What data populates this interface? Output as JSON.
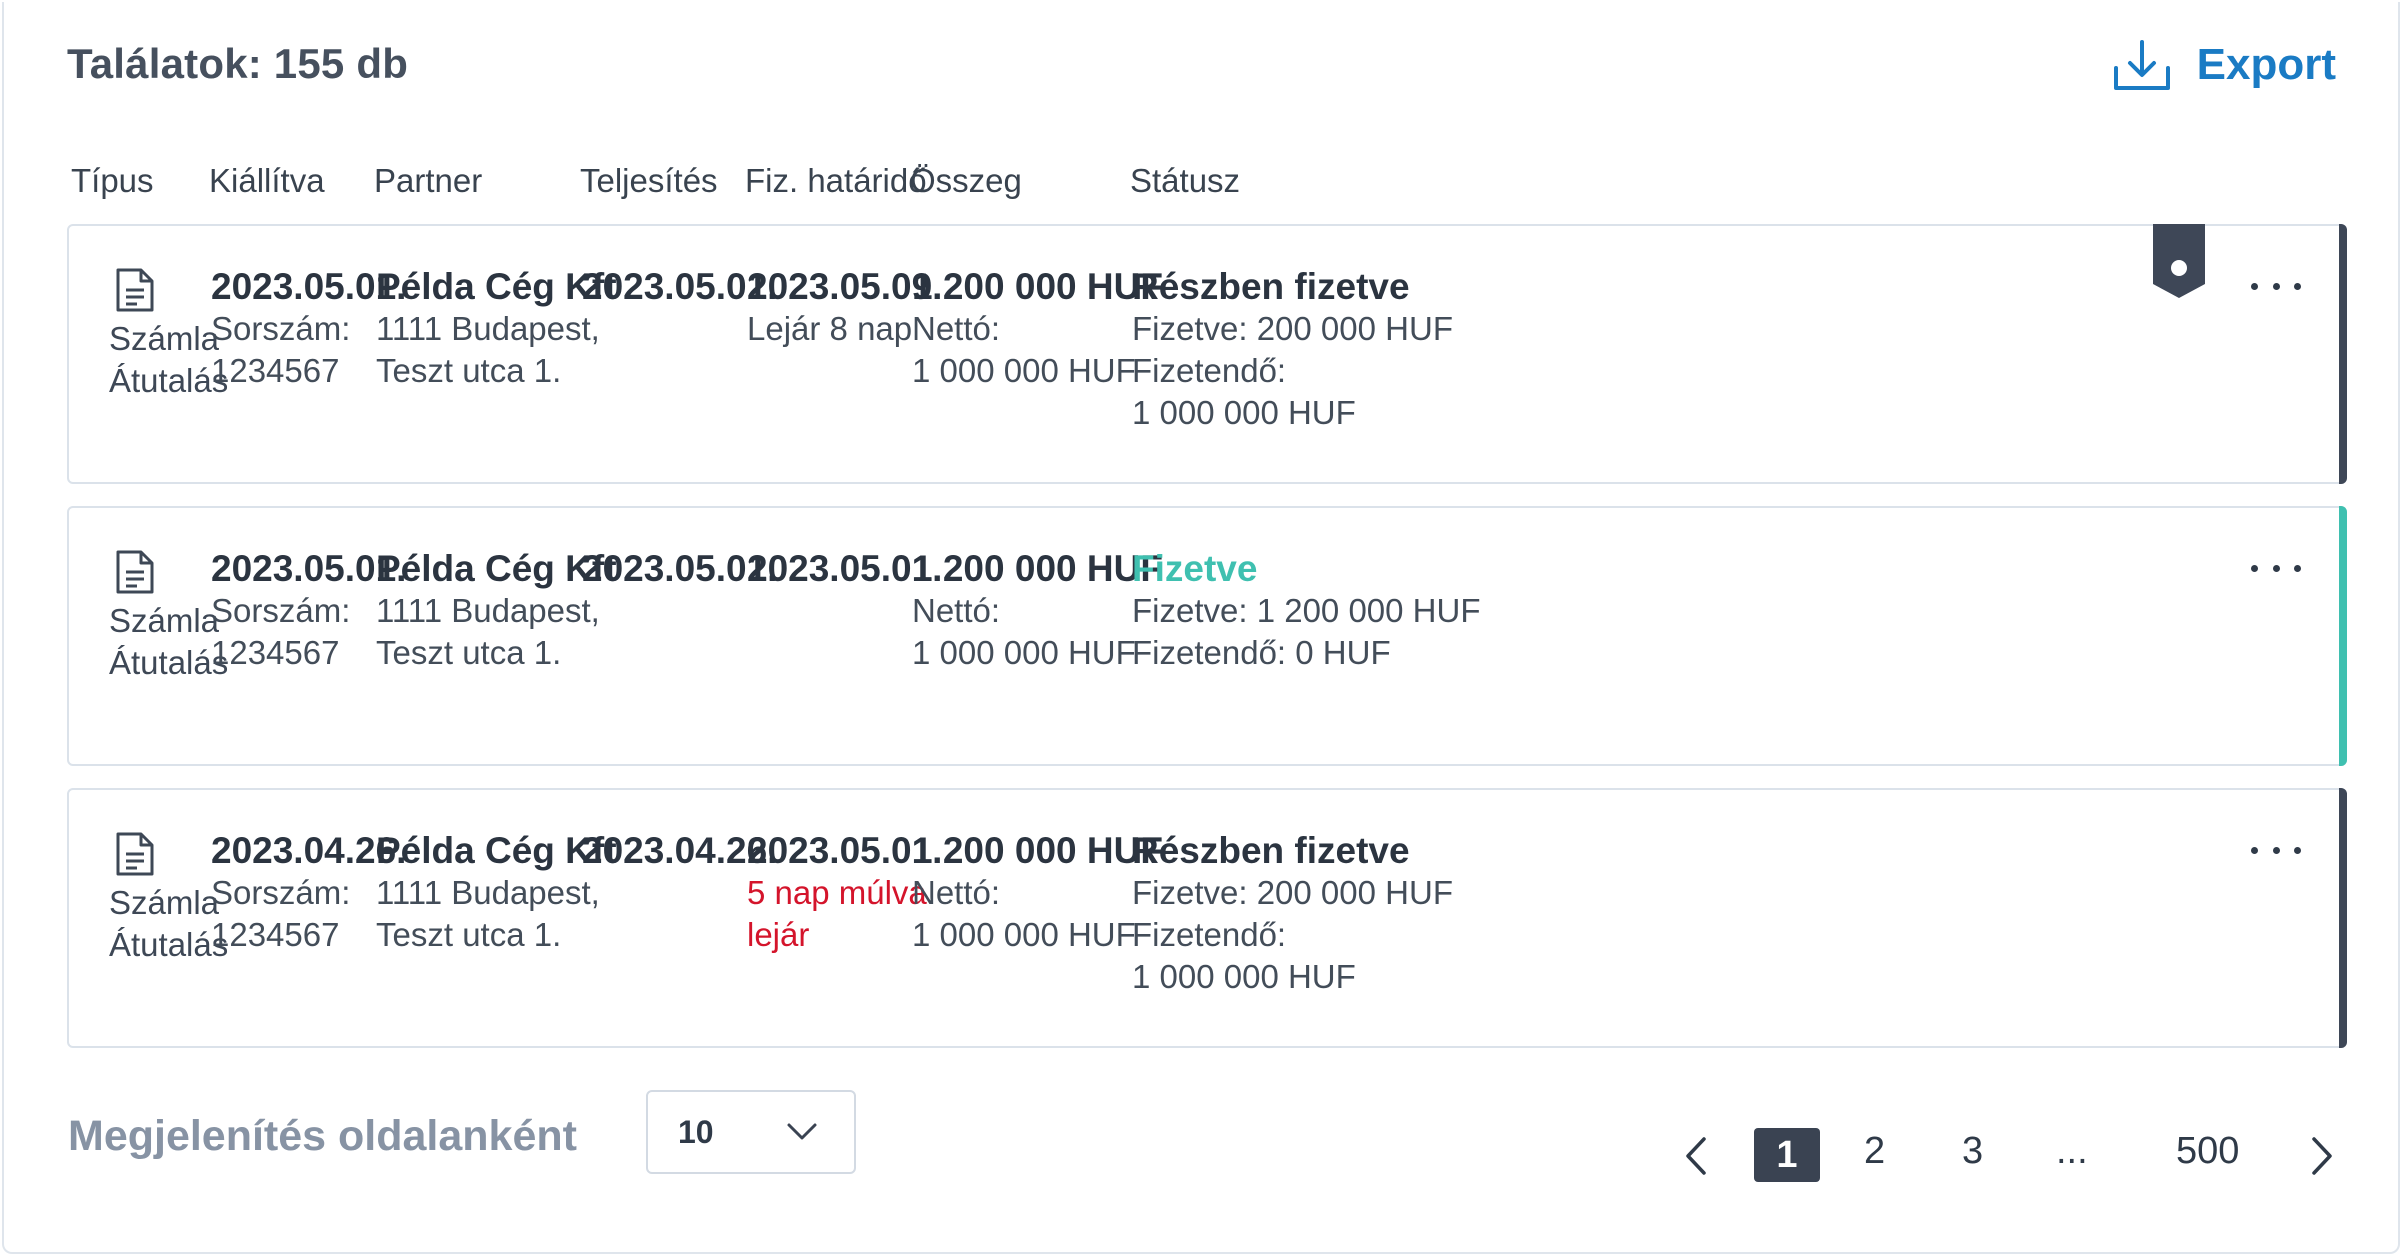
{
  "header": {
    "results_title": "Találatok: 155 db",
    "export_label": "Export",
    "export_icon": "download-icon",
    "accent_color": "#1a7bc4"
  },
  "columns": [
    "Típus",
    "Kiállítva",
    "Partner",
    "Teljesítés",
    "Fiz. határidő",
    "Összeg",
    "Státusz"
  ],
  "rows": [
    {
      "type_label": "Számla",
      "type_method": "Átutalás",
      "issued": "2023.05.01.",
      "serial_label": "Sorszám:",
      "serial": "1234567",
      "partner_name": "Példa Cég Kft",
      "partner_addr1": "1111 Budapest,",
      "partner_addr2": "Teszt utca 1.",
      "fulfilment": "2023.05.01.",
      "due": "2023.05.09.",
      "due_note": "Lejár 8 nap",
      "amount": "1 200 000 HUF",
      "net_label": "Nettó:",
      "net": "1 000 000 HUF",
      "status": "Részben fizetve",
      "paid": "Fizetve: 200 000 HUF",
      "payable_label": "Fizetendő:",
      "payable": "1 000 000 HUF",
      "accent": "#3e4757",
      "bookmarked": true
    },
    {
      "type_label": "Számla",
      "type_method": "Átutalás",
      "issued": "2023.05.01.",
      "serial_label": "Sorszám:",
      "serial": "1234567",
      "partner_name": "Példa Cég Kft",
      "partner_addr1": "1111 Budapest,",
      "partner_addr2": "Teszt utca 1.",
      "fulfilment": "2023.05.01.",
      "due": "2023.05.01.",
      "amount": "1 200 000 HUF",
      "net_label": "Nettó:",
      "net": "1 000 000 HUF",
      "status": "Fizetve",
      "paid": "Fizetve: 1 200 000 HUF",
      "payable_line": "Fizetendő: 0 HUF",
      "accent": "#3fc0b0"
    },
    {
      "type_label": "Számla",
      "type_method": "Átutalás",
      "issued": "2023.04.26.",
      "serial_label": "Sorszám:",
      "serial": "1234567",
      "partner_name": "Példa Cég Kft",
      "partner_addr1": "1111 Budapest,",
      "partner_addr2": "Teszt utca 1.",
      "fulfilment": "2023.04.26.",
      "due": "2023.05.01.",
      "due_warn1": "5 nap múlva",
      "due_warn2": "lejár",
      "amount": "1 200 000 HUF",
      "net_label": "Nettó:",
      "net": "1 000 000 HUF",
      "status": "Részben fizetve",
      "paid": "Fizetve: 200 000 HUF",
      "payable_label": "Fizetendő:",
      "payable": "1 000 000 HUF",
      "accent": "#3e4757"
    }
  ],
  "footer": {
    "per_page_label": "Megjelenítés oldalanként",
    "per_page_value": "10",
    "pages": [
      "1",
      "2",
      "3",
      "...",
      "500"
    ],
    "current_page": "1"
  }
}
